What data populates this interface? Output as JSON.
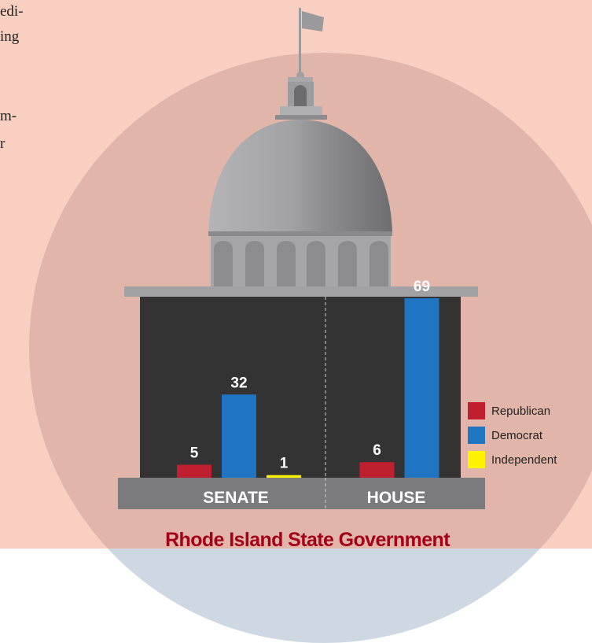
{
  "article_fragments": [
    "edi-",
    "ing",
    "m-",
    "r"
  ],
  "chart_data": {
    "type": "bar",
    "title": "Rhode Island State Government",
    "categories": [
      "SENATE",
      "HOUSE"
    ],
    "series": [
      {
        "name": "Republican",
        "color": "#c01f2f",
        "values": [
          5,
          6
        ]
      },
      {
        "name": "Democrat",
        "color": "#1f75c2",
        "values": [
          32,
          69
        ]
      },
      {
        "name": "Independent",
        "color": "#fff200",
        "values": [
          1,
          null
        ]
      }
    ]
  }
}
